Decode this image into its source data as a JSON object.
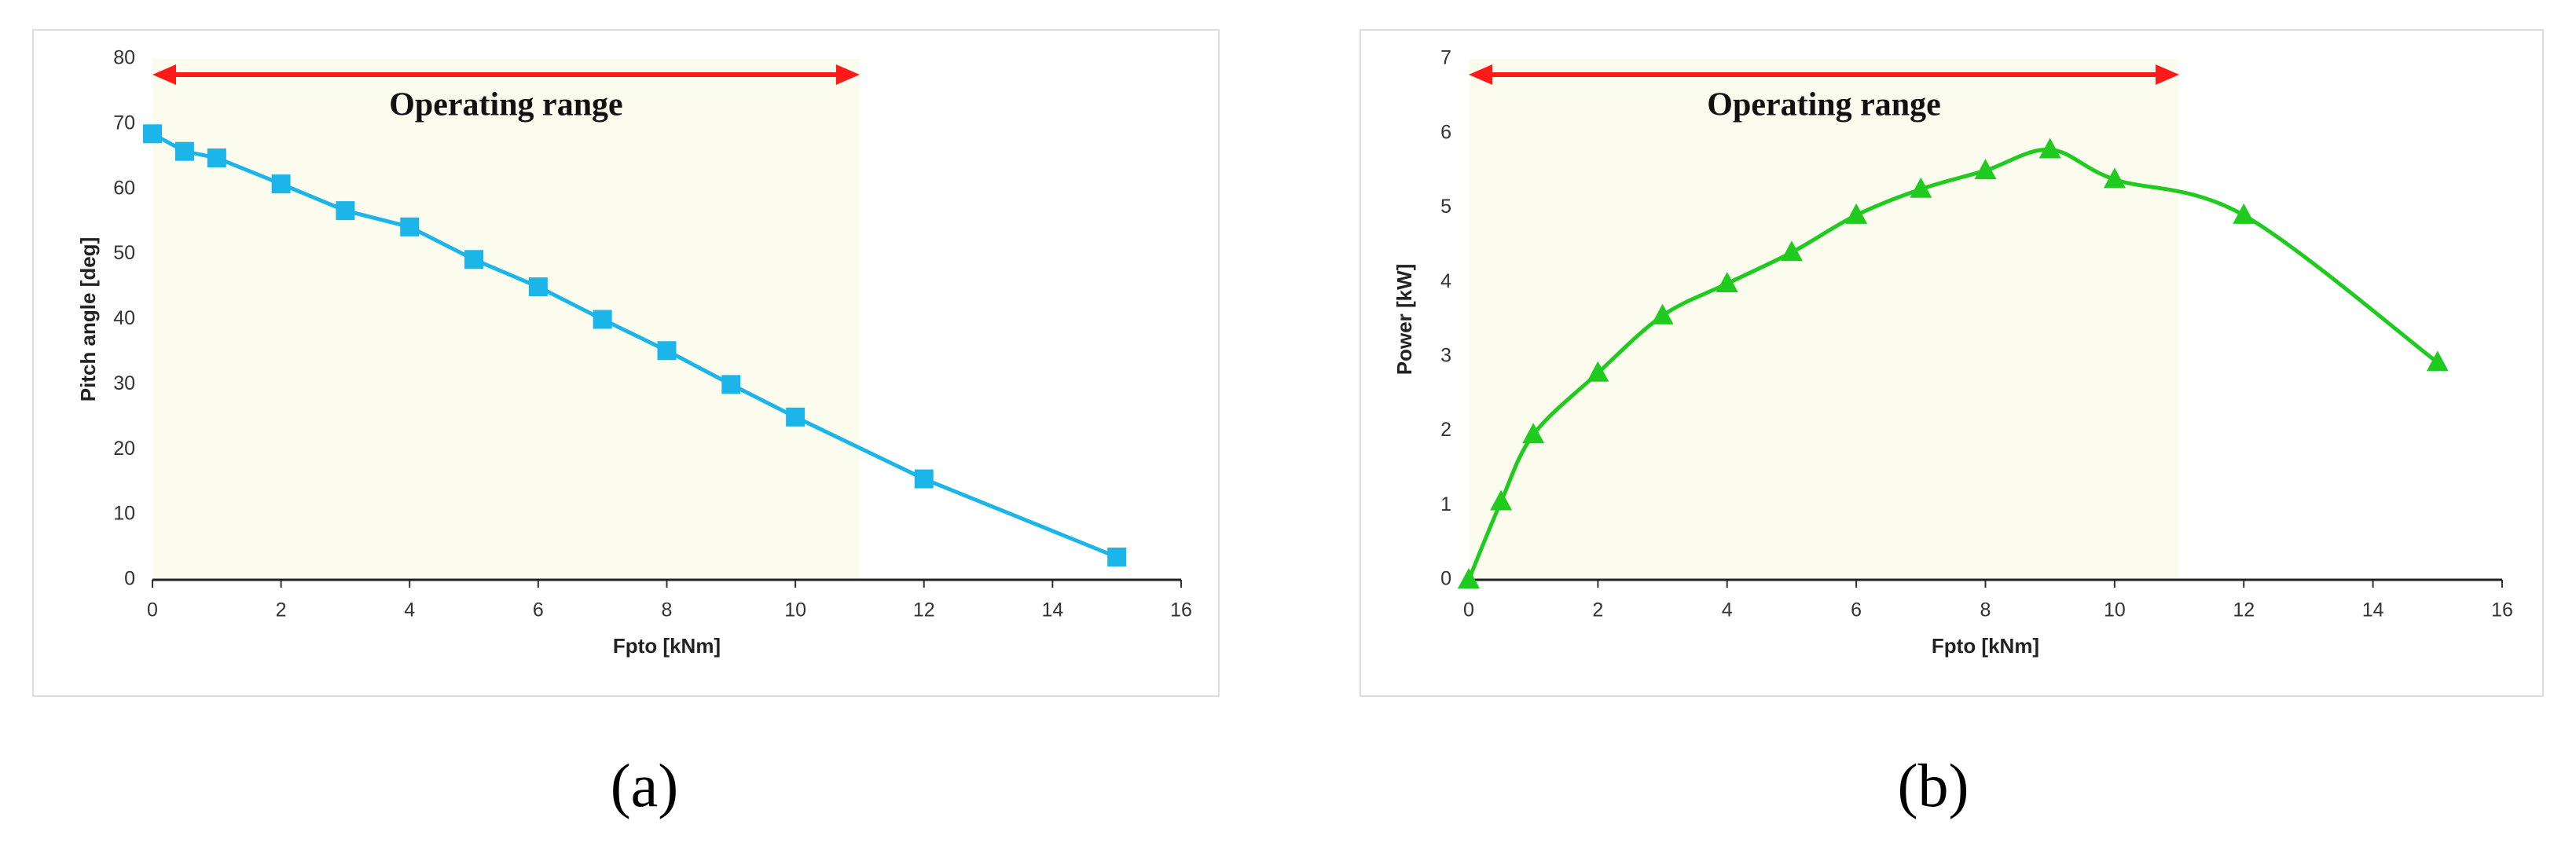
{
  "chart_data": [
    {
      "type": "line",
      "caption": "(a)",
      "x_label": "Fpto [kNm]",
      "y_label": "Pitch angle [deg]",
      "annotation": "Operating range",
      "operating_range": [
        0,
        11
      ],
      "range_color": "#ff1a1a",
      "shade_color": "#fbfbee",
      "x": [
        0,
        0.5,
        1,
        2,
        3,
        4,
        5,
        6,
        7,
        8,
        9,
        10,
        12,
        15
      ],
      "series": [
        {
          "color": "#1cb5e9",
          "marker": "square",
          "smooth": false,
          "values": [
            68.5,
            65.8,
            64.8,
            60.8,
            56.7,
            54.2,
            49.2,
            45,
            40,
            35.2,
            30,
            25,
            15.5,
            3.5
          ]
        }
      ],
      "xlim": [
        0,
        16
      ],
      "xticks": [
        0,
        2,
        4,
        6,
        8,
        10,
        12,
        14,
        16
      ],
      "ylim": [
        0,
        80
      ],
      "yticks": [
        0,
        10,
        20,
        30,
        40,
        50,
        60,
        70,
        80
      ]
    },
    {
      "type": "line",
      "caption": "(b)",
      "x_label": "Fpto [kNm]",
      "y_label": "Power [kW]",
      "annotation": "Operating range",
      "operating_range": [
        0,
        11
      ],
      "range_color": "#ff1a1a",
      "shade_color": "#fbfbee",
      "x": [
        0,
        0.5,
        1,
        2,
        3,
        4,
        5,
        6,
        7,
        8,
        9,
        10,
        12,
        15
      ],
      "series": [
        {
          "color": "#1ecb1e",
          "marker": "triangle",
          "smooth": true,
          "values": [
            0,
            1.05,
            1.95,
            2.78,
            3.55,
            3.98,
            4.4,
            4.9,
            5.25,
            5.5,
            5.78,
            5.38,
            4.9,
            2.92
          ]
        }
      ],
      "xlim": [
        0,
        16
      ],
      "xticks": [
        0,
        2,
        4,
        6,
        8,
        10,
        12,
        14,
        16
      ],
      "ylim": [
        0,
        7
      ],
      "yticks": [
        0,
        1,
        2,
        3,
        4,
        5,
        6,
        7
      ]
    }
  ]
}
